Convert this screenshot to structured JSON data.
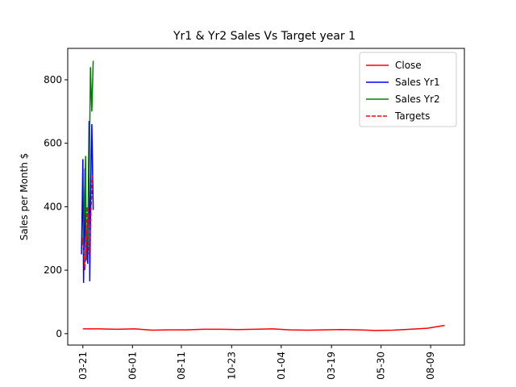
{
  "chart_data": {
    "type": "line",
    "title": "Yr1 & Yr2 Sales Vs Target year 1",
    "y_label": "Sales per Month $",
    "xlim": [
      -22,
      554
    ],
    "ylim": [
      -36,
      899
    ],
    "xticks": [
      {
        "value": 0,
        "label": "03-21"
      },
      {
        "value": 72,
        "label": "06-01"
      },
      {
        "value": 143,
        "label": "08-11"
      },
      {
        "value": 216,
        "label": "10-23"
      },
      {
        "value": 288,
        "label": "01-04"
      },
      {
        "value": 361,
        "label": "03-19"
      },
      {
        "value": 433,
        "label": "05-30"
      },
      {
        "value": 505,
        "label": "08-09"
      }
    ],
    "yticks": [
      0,
      200,
      400,
      600,
      800
    ],
    "legend": "upper right",
    "series": [
      {
        "name": "Close",
        "color": "#ff0000",
        "dash": false,
        "x": [
          0,
          25,
          50,
          75,
          100,
          125,
          150,
          175,
          200,
          225,
          250,
          275,
          300,
          325,
          350,
          375,
          400,
          425,
          450,
          475,
          500,
          525
        ],
        "values": [
          15,
          15,
          14,
          15,
          11,
          12,
          12,
          14,
          14,
          13,
          14,
          15,
          12,
          11,
          12,
          13,
          12,
          10,
          11,
          14,
          17,
          26
        ]
      },
      {
        "name": "Sales Yr1",
        "color": "#0000ff",
        "dash": false,
        "x": [
          -2,
          0,
          1,
          3,
          4,
          6,
          7,
          9,
          10,
          12,
          13,
          15
        ],
        "values": [
          250,
          550,
          160,
          520,
          230,
          300,
          220,
          670,
          165,
          560,
          660,
          390
        ]
      },
      {
        "name": "Sales Yr2",
        "color": "#008000",
        "dash": false,
        "x": [
          0,
          2,
          4,
          5,
          7,
          9,
          11,
          13,
          15
        ],
        "values": [
          280,
          400,
          560,
          230,
          350,
          450,
          840,
          700,
          860
        ]
      },
      {
        "name": "Targets",
        "color": "#ff0000",
        "dash": true,
        "x": [
          0,
          3,
          6,
          9,
          14
        ],
        "values": [
          300,
          200,
          400,
          250,
          500
        ]
      }
    ]
  }
}
